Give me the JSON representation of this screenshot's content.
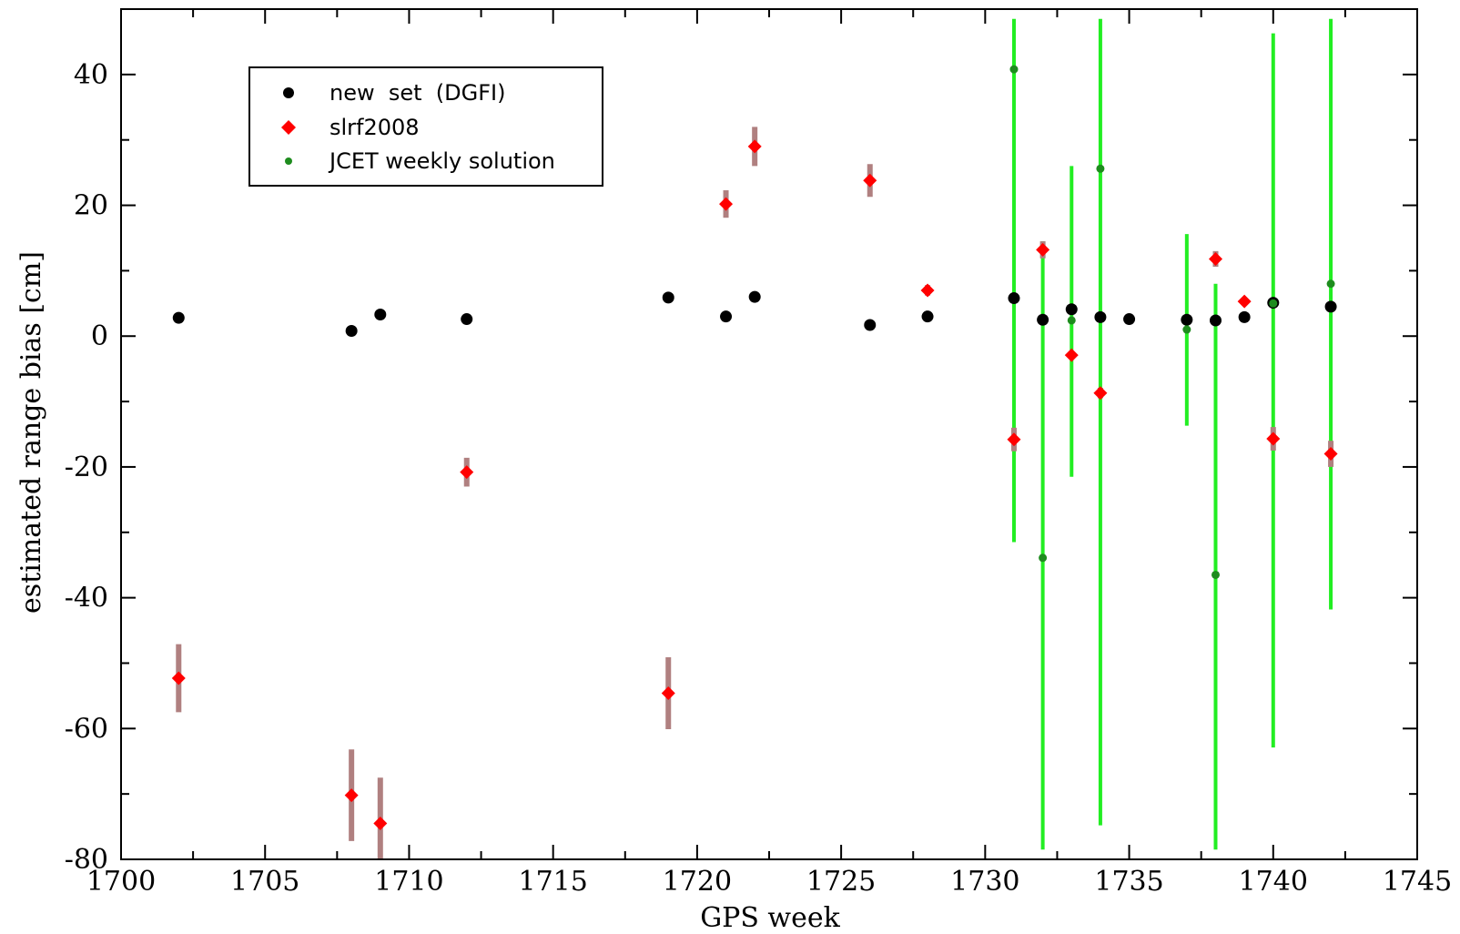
{
  "chart_data": {
    "type": "scatter",
    "xlabel": "GPS week",
    "ylabel": "estimated range bias [cm]",
    "xlim": [
      1700,
      1745
    ],
    "ylim": [
      -80,
      50
    ],
    "xticks": [
      1700,
      1705,
      1710,
      1715,
      1720,
      1725,
      1730,
      1735,
      1740,
      1745
    ],
    "xtick_labels": [
      "1700",
      "1705",
      "1710",
      "1715",
      "1720",
      "1725",
      "1730",
      "1735",
      "1740",
      "1745"
    ],
    "yticks": [
      -80,
      -60,
      -40,
      -20,
      0,
      20,
      40
    ],
    "ytick_labels": [
      "-80",
      "-60",
      "-40",
      "-20",
      "0",
      "20",
      "40"
    ],
    "grid": false,
    "legend_position": "top-left",
    "series": [
      {
        "name": "new  set  (DGFI)",
        "marker": "circle",
        "color": "#000000",
        "points": [
          {
            "x": 1702,
            "y": 2.8
          },
          {
            "x": 1708,
            "y": 0.8
          },
          {
            "x": 1709,
            "y": 3.3
          },
          {
            "x": 1712,
            "y": 2.6
          },
          {
            "x": 1719,
            "y": 5.9
          },
          {
            "x": 1721,
            "y": 3.0
          },
          {
            "x": 1722,
            "y": 6.0
          },
          {
            "x": 1726,
            "y": 1.7
          },
          {
            "x": 1728,
            "y": 3.0
          },
          {
            "x": 1731,
            "y": 5.8
          },
          {
            "x": 1732,
            "y": 2.5
          },
          {
            "x": 1733,
            "y": 4.1
          },
          {
            "x": 1734,
            "y": 2.9
          },
          {
            "x": 1735,
            "y": 2.6
          },
          {
            "x": 1737,
            "y": 2.5
          },
          {
            "x": 1738,
            "y": 2.4
          },
          {
            "x": 1739,
            "y": 2.9
          },
          {
            "x": 1740,
            "y": 5.1
          },
          {
            "x": 1742,
            "y": 4.5
          }
        ]
      },
      {
        "name": "slrf2008",
        "marker": "diamond",
        "color": "#ff0000",
        "errorbar_color": "#b08080",
        "points": [
          {
            "x": 1702,
            "y": -52.3,
            "err": 5.2
          },
          {
            "x": 1708,
            "y": -70.2,
            "err": 7.0
          },
          {
            "x": 1709,
            "y": -74.5,
            "err": 7.0
          },
          {
            "x": 1712,
            "y": -20.8,
            "err": 2.2
          },
          {
            "x": 1719,
            "y": -54.6,
            "err": 5.5
          },
          {
            "x": 1721,
            "y": 20.2,
            "err": 2.1
          },
          {
            "x": 1722,
            "y": 29.0,
            "err": 3.0
          },
          {
            "x": 1726,
            "y": 23.8,
            "err": 2.5
          },
          {
            "x": 1728,
            "y": 7.0,
            "err": 0.8
          },
          {
            "x": 1731,
            "y": -15.8,
            "err": 1.8
          },
          {
            "x": 1732,
            "y": 13.2,
            "err": 1.3
          },
          {
            "x": 1733,
            "y": -2.9,
            "err": 0.6
          },
          {
            "x": 1734,
            "y": -8.7,
            "err": 0.8
          },
          {
            "x": 1738,
            "y": 11.8,
            "err": 1.2
          },
          {
            "x": 1739,
            "y": 5.3,
            "err": 0.6
          },
          {
            "x": 1740,
            "y": -15.7,
            "err": 1.8
          },
          {
            "x": 1742,
            "y": -18.0,
            "err": 2.0
          }
        ]
      },
      {
        "name": "JCET weekly solution",
        "marker": "circle-small",
        "color": "#1e8c1e",
        "errorbar_color": "#22ee22",
        "points": [
          {
            "x": 1731,
            "y": 40.8,
            "ylow": -31.5,
            "yhigh": 48.5
          },
          {
            "x": 1732,
            "y": -33.9,
            "ylow": -78.5,
            "yhigh": 14.5
          },
          {
            "x": 1733,
            "y": 2.4,
            "ylow": -21.5,
            "yhigh": 26.0
          },
          {
            "x": 1734,
            "y": 25.6,
            "ylow": -74.8,
            "yhigh": 48.5
          },
          {
            "x": 1737,
            "y": 1.0,
            "ylow": -13.7,
            "yhigh": 15.6
          },
          {
            "x": 1738,
            "y": -36.5,
            "ylow": -78.5,
            "yhigh": 8.0
          },
          {
            "x": 1740,
            "y": 5.0,
            "ylow": -62.9,
            "yhigh": 46.3
          },
          {
            "x": 1742,
            "y": 8.0,
            "ylow": -41.8,
            "yhigh": 48.5
          }
        ]
      }
    ]
  }
}
